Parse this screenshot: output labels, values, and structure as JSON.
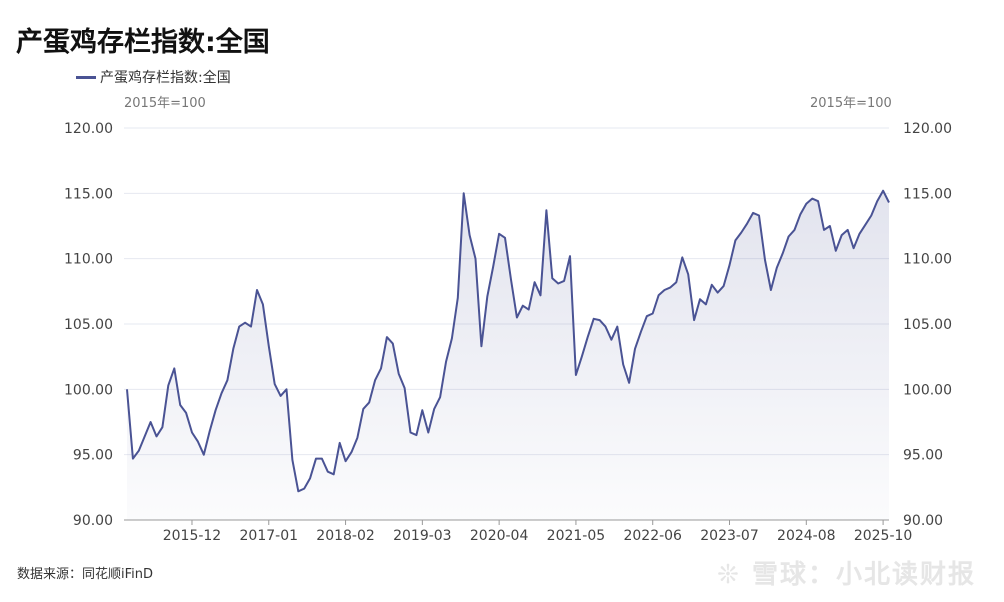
{
  "title": "产蛋鸡存栏指数:全国",
  "source": "数据来源：同花顺iFinD",
  "watermark": "雪球：小北读财报",
  "colors": {
    "line": "#4a5394",
    "grid": "#e6e8f0"
  },
  "chart_data": {
    "type": "area",
    "title": "产蛋鸡存栏指数:全国",
    "legend": [
      "产蛋鸡存栏指数:全国"
    ],
    "legend_position": "top-left",
    "ylabel_left": "2015年=100",
    "ylabel_right": "2015年=100",
    "ylim": [
      90,
      120
    ],
    "yticks": [
      "90.00",
      "95.00",
      "100.00",
      "105.00",
      "110.00",
      "115.00",
      "120.00"
    ],
    "xticks": [
      "2015-12",
      "2017-01",
      "2018-02",
      "2019-03",
      "2020-04",
      "2021-05",
      "2022-06",
      "2023-07",
      "2024-08",
      "2025-10"
    ],
    "x_start": "2015-01",
    "x_end": "2025-10",
    "frequency": "monthly",
    "grid": true,
    "series": [
      {
        "name": "产蛋鸡存栏指数:全国",
        "values": [
          100.0,
          94.7,
          95.3,
          96.4,
          97.5,
          96.4,
          97.1,
          100.3,
          101.6,
          98.8,
          98.2,
          96.7,
          96.0,
          95.0,
          96.8,
          98.4,
          99.7,
          100.7,
          103.1,
          104.8,
          105.1,
          104.8,
          107.6,
          106.5,
          103.3,
          100.4,
          99.5,
          100.0,
          94.6,
          92.2,
          92.4,
          93.2,
          94.7,
          94.7,
          93.7,
          93.5,
          95.9,
          94.5,
          95.2,
          96.3,
          98.5,
          99.0,
          100.7,
          101.6,
          104.0,
          103.5,
          101.2,
          100.1,
          96.7,
          96.5,
          98.4,
          96.7,
          98.5,
          99.4,
          102.1,
          103.9,
          107.0,
          115.0,
          111.8,
          110.0,
          103.3,
          107.1,
          109.4,
          111.9,
          111.6,
          108.4,
          105.5,
          106.4,
          106.1,
          108.2,
          107.2,
          113.7,
          108.5,
          108.1,
          108.3,
          110.2,
          101.1,
          102.5,
          104.0,
          105.4,
          105.3,
          104.8,
          103.8,
          104.8,
          101.9,
          100.5,
          103.1,
          104.4,
          105.6,
          105.8,
          107.2,
          107.6,
          107.8,
          108.2,
          110.1,
          108.8,
          105.3,
          106.9,
          106.5,
          108.0,
          107.4,
          107.9,
          109.5,
          111.4,
          112.0,
          112.7,
          113.5,
          113.3,
          109.9,
          107.6,
          109.3,
          110.4,
          111.7,
          112.2,
          113.4,
          114.2,
          114.6,
          114.4,
          112.2,
          112.5,
          110.6,
          111.8,
          112.2,
          110.8,
          111.9,
          112.6,
          113.3,
          114.4,
          115.2,
          114.3
        ]
      }
    ]
  }
}
